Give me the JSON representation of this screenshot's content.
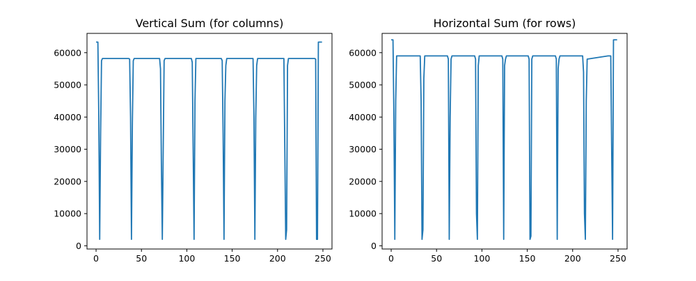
{
  "chart_data": [
    {
      "type": "line",
      "title": "Vertical Sum (for columns)",
      "xlabel": "",
      "ylabel": "",
      "xlim": [
        -10,
        260
      ],
      "ylim": [
        -1000,
        66000
      ],
      "xticks": [
        0,
        50,
        100,
        150,
        200,
        250
      ],
      "yticks": [
        0,
        10000,
        20000,
        30000,
        40000,
        50000,
        60000
      ],
      "grid": false,
      "color": "#1f77b4",
      "series": [
        {
          "x": [
            0,
            1,
            2,
            3,
            4,
            5,
            6,
            7,
            8,
            35,
            36,
            37,
            38,
            39,
            40,
            41,
            42,
            43,
            69,
            70,
            71,
            72,
            73,
            74,
            75,
            76,
            104,
            105,
            106,
            107,
            108,
            109,
            110,
            137,
            138,
            139,
            140,
            141,
            142,
            143,
            144,
            171,
            172,
            173,
            174,
            175,
            176,
            177,
            178,
            205,
            206,
            207,
            208,
            209,
            210,
            211,
            212,
            239,
            240,
            241,
            242,
            243,
            244,
            245,
            246,
            247,
            248,
            249
          ],
          "y": [
            63300,
            63300,
            63300,
            40000,
            2000,
            35000,
            57500,
            58200,
            58200,
            58200,
            58200,
            58000,
            40000,
            2000,
            38000,
            57500,
            58200,
            58200,
            58200,
            58200,
            55000,
            25000,
            2000,
            30000,
            57500,
            58200,
            58200,
            58200,
            57000,
            30000,
            2000,
            45000,
            58200,
            58200,
            58200,
            57500,
            35000,
            2000,
            45000,
            56000,
            58200,
            58200,
            58200,
            58200,
            40000,
            2000,
            40000,
            56000,
            58200,
            58200,
            58200,
            58200,
            30000,
            2000,
            5000,
            56000,
            58200,
            58200,
            58200,
            58200,
            58000,
            2000,
            2000,
            63300,
            63300,
            63300,
            63300,
            63300
          ]
        }
      ]
    },
    {
      "type": "line",
      "title": "Horizontal Sum (for rows)",
      "xlabel": "",
      "ylabel": "",
      "xlim": [
        -10,
        260
      ],
      "ylim": [
        -1000,
        66000
      ],
      "xticks": [
        0,
        50,
        100,
        150,
        200,
        250
      ],
      "yticks": [
        0,
        10000,
        20000,
        30000,
        40000,
        50000,
        60000
      ],
      "grid": false,
      "color": "#1f77b4",
      "series": [
        {
          "x": [
            0,
            1,
            2,
            3,
            4,
            5,
            6,
            7,
            31,
            32,
            33,
            34,
            35,
            36,
            37,
            61,
            62,
            63,
            64,
            65,
            66,
            67,
            91,
            92,
            93,
            94,
            95,
            96,
            97,
            121,
            122,
            123,
            124,
            125,
            126,
            127,
            150,
            151,
            152,
            153,
            154,
            155,
            156,
            180,
            181,
            182,
            183,
            184,
            185,
            186,
            210,
            211,
            212,
            213,
            214,
            215,
            216,
            239,
            240,
            241,
            242,
            243,
            244,
            245,
            246,
            247,
            248,
            249
          ],
          "y": [
            64000,
            64000,
            64000,
            40000,
            2000,
            45000,
            59000,
            59000,
            59000,
            59000,
            45000,
            2000,
            5000,
            52000,
            59000,
            59000,
            59000,
            58000,
            2000,
            40000,
            58000,
            59000,
            59000,
            59000,
            58000,
            10000,
            2000,
            56000,
            59000,
            59000,
            59000,
            58000,
            2000,
            56000,
            58000,
            59000,
            59000,
            59000,
            58000,
            2000,
            3000,
            58000,
            59000,
            59000,
            59000,
            58000,
            2000,
            55000,
            58000,
            59000,
            59000,
            59000,
            54000,
            10000,
            2000,
            45000,
            58000,
            59000,
            59000,
            59000,
            59000,
            30000,
            2000,
            64000,
            64000,
            64000,
            64000,
            64000
          ]
        }
      ]
    }
  ]
}
